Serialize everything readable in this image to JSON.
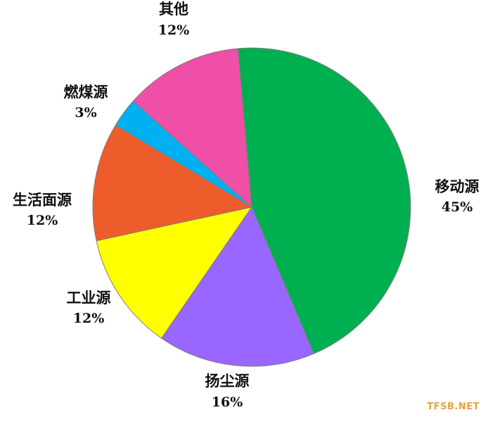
{
  "chart_data": {
    "type": "pie",
    "title": "",
    "slices": [
      {
        "name": "移动源",
        "value": 45,
        "label": "45%",
        "color": "#00b050"
      },
      {
        "name": "扬尘源",
        "value": 16,
        "label": "16%",
        "color": "#9966ff"
      },
      {
        "name": "工业源",
        "value": 12,
        "label": "12%",
        "color": "#ffff00"
      },
      {
        "name": "生活面源",
        "value": 12,
        "label": "12%",
        "color": "#ee5c2b"
      },
      {
        "name": "燃煤源",
        "value": 3,
        "label": "3%",
        "color": "#00b0f0"
      },
      {
        "name": "其他",
        "value": 12,
        "label": "12%",
        "color": "#ef4fa6"
      }
    ],
    "slice_border_color": "#7f7f7f"
  },
  "watermark": {
    "text": "TFSB.NET",
    "color": "#e8a33d"
  }
}
